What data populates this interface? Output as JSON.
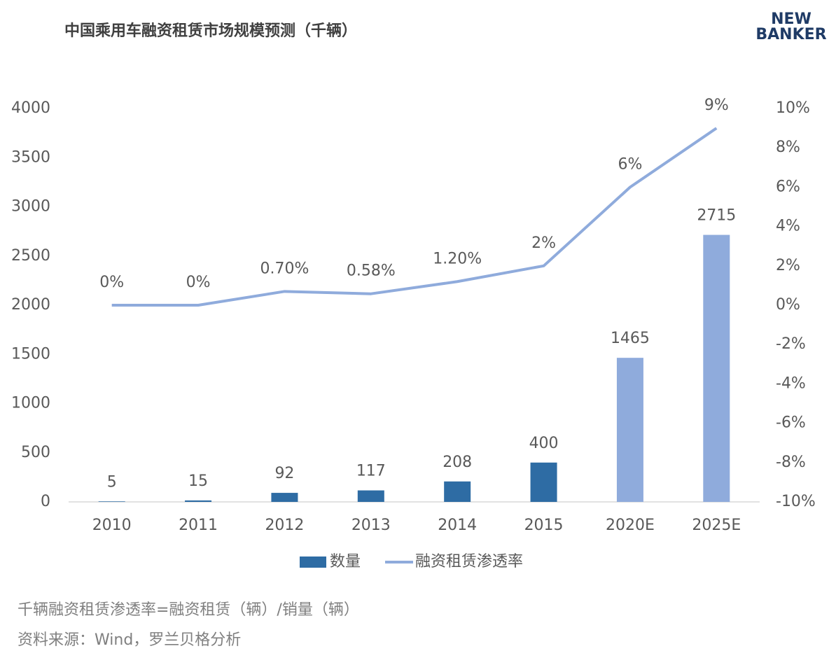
{
  "chart_data": {
    "type": "combo",
    "title": "中国乘用车融资租赁市场规模预测（千辆）",
    "logo": [
      "NEW",
      "BANKER"
    ],
    "categories": [
      "2010",
      "2011",
      "2012",
      "2013",
      "2014",
      "2015",
      "2020E",
      "2025E"
    ],
    "series": [
      {
        "name": "数量",
        "type": "bar",
        "color": "#2e6ca4",
        "colors": [
          "#2e6ca4",
          "#2e6ca4",
          "#2e6ca4",
          "#2e6ca4",
          "#2e6ca4",
          "#2e6ca4",
          "#8fabdc",
          "#8fabdc"
        ],
        "values": [
          5,
          15,
          92,
          117,
          208,
          400,
          1465,
          2715
        ]
      },
      {
        "name": "融资租赁渗透率",
        "type": "line",
        "axis": "y2",
        "color": "#8fabdc",
        "values": [
          0,
          0,
          0.7,
          0.58,
          1.2,
          2,
          6,
          9
        ],
        "value_labels": [
          "0%",
          "0%",
          "0.70%",
          "0.58%",
          "1.20%",
          "2%",
          "6%",
          "9%"
        ]
      }
    ],
    "ylim": [
      0,
      4000
    ],
    "yticks": [
      0,
      500,
      1000,
      1500,
      2000,
      2500,
      3000,
      3500,
      4000
    ],
    "y2lim": [
      -10,
      10
    ],
    "y2ticks": [
      {
        "value": -10,
        "label": "-10%"
      },
      {
        "value": -8,
        "label": "-8%"
      },
      {
        "value": -6,
        "label": "-6%"
      },
      {
        "value": -4,
        "label": "-4%"
      },
      {
        "value": -2,
        "label": "-2%"
      },
      {
        "value": 0,
        "label": "0%"
      },
      {
        "value": 2,
        "label": "2%"
      },
      {
        "value": 4,
        "label": "4%"
      },
      {
        "value": 6,
        "label": "6%"
      },
      {
        "value": 8,
        "label": "8%"
      },
      {
        "value": 10,
        "label": "10%"
      }
    ],
    "legend": "bottom",
    "notes": [
      "千辆融资租赁渗透率=融资租赁（辆）/销量（辆）",
      "资料来源：Wind，罗兰贝格分析"
    ]
  }
}
